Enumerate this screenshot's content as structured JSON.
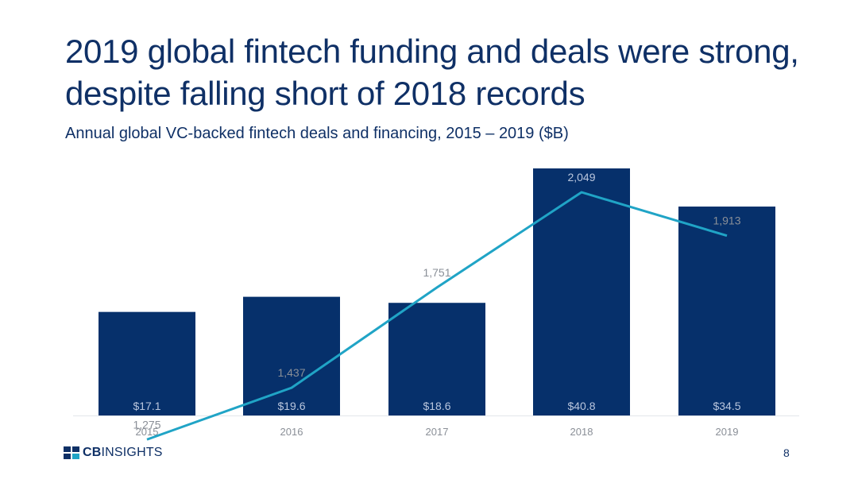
{
  "title_lines": [
    "2019 global fintech funding and deals were strong,",
    "despite falling short of 2018 records"
  ],
  "subtitle": "Annual global VC-backed fintech deals and financing, 2015 – 2019 ($B)",
  "logo": {
    "bold": "CB",
    "rest": "INSIGHTS",
    "icon": "cb-insights-logo-icon"
  },
  "page_number": "8",
  "colors": {
    "bar": "#06306b",
    "line": "#20a4c6",
    "title": "#0f3066",
    "bar_label": "#b9c6dd",
    "line_label": "#8a8f97",
    "tick": "#8a8f97"
  },
  "chart_data": {
    "type": "bar",
    "categories": [
      "2015",
      "2016",
      "2017",
      "2018",
      "2019"
    ],
    "series": [
      {
        "values": [
          17.1,
          19.6,
          18.6,
          40.8,
          34.5
        ],
        "labels": [
          "$17.1",
          "$19.6",
          "$18.6",
          "$40.8",
          "$34.5"
        ],
        "kind": "bar"
      },
      {
        "values": [
          1275,
          1437,
          1751,
          2049,
          1913
        ],
        "labels": [
          "1,275",
          "1,437",
          "1,751",
          "2,049",
          "1,913"
        ],
        "kind": "line"
      }
    ],
    "title": "",
    "xlabel": "",
    "ylabel": "",
    "bar_ylim": [
      0,
      40.8
    ],
    "line_ylim": [
      0,
      2049
    ],
    "grid": false,
    "legend": "none"
  }
}
